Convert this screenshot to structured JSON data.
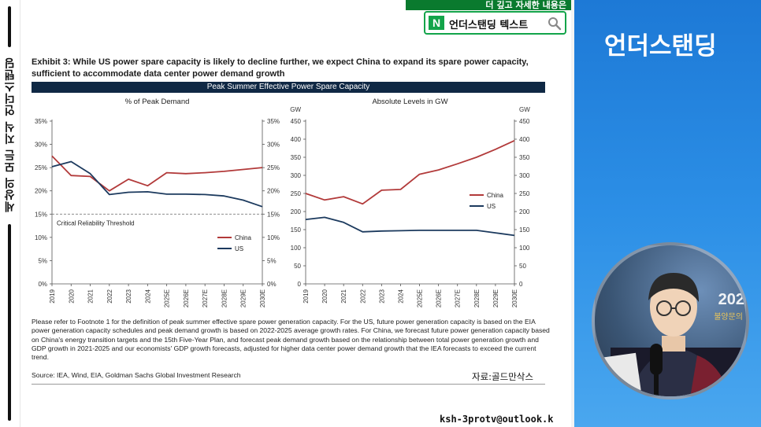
{
  "sidebar": {
    "vertical_text": "세상의 모든 지식  언더스탠딩"
  },
  "banner": {
    "top_text": "더 깊고 자세한 내용은",
    "logo": "N",
    "label": "언더스탠딩 텍스트",
    "icon": "search-icon"
  },
  "brand": {
    "name": "언더스탠딩",
    "bg_color": "#1d79d6"
  },
  "host_cam": {
    "year_text": "202",
    "sub_text": "불양문의"
  },
  "exhibit": {
    "title": "Exhibit 3: While US power spare capacity is likely to decline further, we expect China to expand its spare power capacity, sufficient to accommodate data center power demand growth",
    "header": "Peak Summer Effective Power Spare Capacity",
    "footnote": "Please refer to Footnote 1 for the definition of peak summer effective spare power generation capacity.  For the US, future power generation capacity is based on the EIA power generation capacity schedules and peak demand growth is based on 2022-2025 average growth rates. For China, we forecast future power generation capacity based on China's energy transition targets and the 15th Five-Year Plan, and forecast peak demand growth based on the relationship between total power generation growth and GDP growth in 2021-2025 and our economists' GDP growth forecasts, adjusted for higher data center power demand growth that the IEA forecasts to exceed the current trend.",
    "source": "Source: IEA, Wind, EIA, Goldman Sachs Global Investment Research",
    "credit": "자료:골드만삭스"
  },
  "footer": {
    "email": "ksh-3protv@outlook.k"
  },
  "chart_data": [
    {
      "type": "line",
      "title": "% of Peak Demand",
      "x": [
        "2019",
        "2020",
        "2021",
        "2022",
        "2023",
        "2024",
        "2025E",
        "2026E",
        "2027E",
        "2028E",
        "2029E",
        "2030E"
      ],
      "ylim": [
        0,
        35
      ],
      "yticks": [
        "0%",
        "5%",
        "10%",
        "15%",
        "20%",
        "25%",
        "30%",
        "35%"
      ],
      "threshold": {
        "value": 15,
        "label": "Critical Reliability Threshold"
      },
      "legend_position": "lower-right",
      "series": [
        {
          "name": "China",
          "color": "#b23a3a",
          "values": [
            27.5,
            23.3,
            23.1,
            20.0,
            22.5,
            21.1,
            23.9,
            23.7,
            23.9,
            24.2,
            24.6,
            25.0
          ]
        },
        {
          "name": "US",
          "color": "#1c3a5e",
          "values": [
            25.2,
            26.3,
            23.7,
            19.2,
            19.7,
            19.8,
            19.3,
            19.3,
            19.2,
            18.9,
            18.0,
            16.6
          ]
        }
      ]
    },
    {
      "type": "line",
      "title": "Absolute Levels in GW",
      "x": [
        "2019",
        "2020",
        "2021",
        "2022",
        "2023",
        "2024",
        "2025E",
        "2026E",
        "2027E",
        "2028E",
        "2029E",
        "2030E"
      ],
      "ylim": [
        0,
        450
      ],
      "yunit": "GW",
      "yticks": [
        "0",
        "50",
        "100",
        "150",
        "200",
        "250",
        "300",
        "350",
        "400",
        "450"
      ],
      "legend_position": "middle-right",
      "series": [
        {
          "name": "China",
          "color": "#b23a3a",
          "values": [
            250,
            232,
            241,
            221,
            259,
            261,
            303,
            315,
            332,
            350,
            372,
            396
          ]
        },
        {
          "name": "US",
          "color": "#1c3a5e",
          "values": [
            178,
            184,
            170,
            144,
            146,
            147,
            148,
            148,
            148,
            148,
            141,
            134
          ]
        }
      ]
    }
  ]
}
